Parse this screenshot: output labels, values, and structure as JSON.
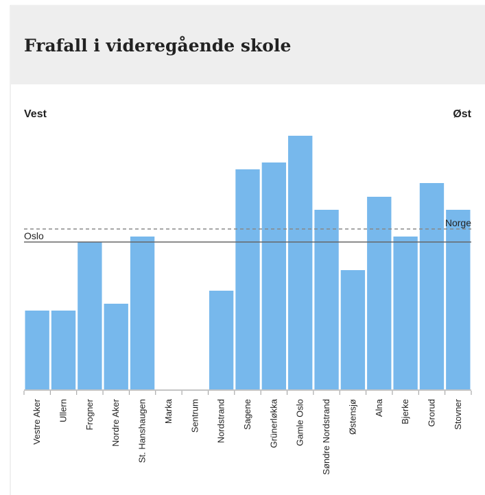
{
  "chart_data": {
    "type": "bar",
    "title": "Frafall i videregående skole",
    "left_label": "Vest",
    "right_label": "Øst",
    "categories": [
      "Vestre Aker",
      "Ullern",
      "Frogner",
      "Nordre Aker",
      "St. Hanshaugen",
      "Marka",
      "Sentrum",
      "Nordstrand",
      "Sagene",
      "Grünerløkka",
      "Gamle Oslo",
      "Søndre Nordstrand",
      "Østensjø",
      "Alna",
      "Bjerke",
      "Grorud",
      "Stovner"
    ],
    "values": [
      11.5,
      11.5,
      21.5,
      12.5,
      22.3,
      null,
      null,
      14.4,
      32.1,
      33.1,
      37,
      26.2,
      17.4,
      28.1,
      22.3,
      30.1,
      26.2
    ],
    "color": "#77b8ec",
    "reference_lines": [
      {
        "name": "Oslo",
        "value": 21.5,
        "style": "solid"
      },
      {
        "name": "Norge",
        "value": 23.4,
        "style": "dashed"
      }
    ],
    "ylim": [
      0,
      38
    ]
  }
}
